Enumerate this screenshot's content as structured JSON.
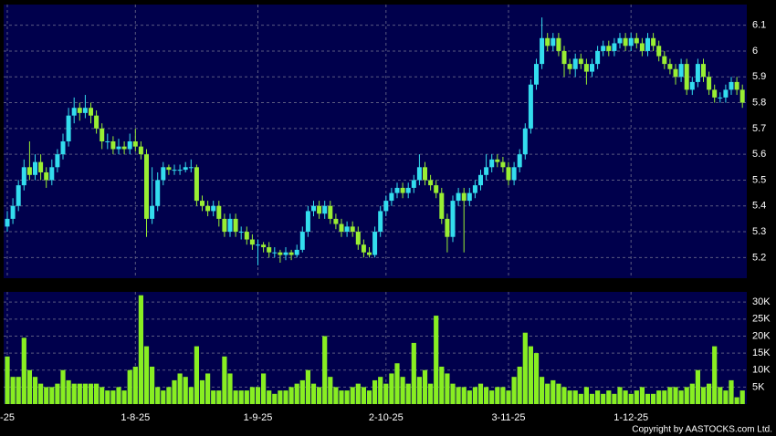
{
  "chart_data": [
    {
      "type": "candlestick",
      "up_color": "#33ddee",
      "down_color": "#99ee33",
      "grid": true,
      "ylim": [
        5.12,
        6.18
      ],
      "yticks": [
        5.2,
        5.3,
        5.4,
        5.5,
        5.6,
        5.7,
        5.8,
        5.9,
        6,
        6.1
      ],
      "open": [
        5.32,
        5.35,
        5.4,
        5.48,
        5.55,
        5.52,
        5.57,
        5.53,
        5.5,
        5.55,
        5.6,
        5.65,
        5.75,
        5.78,
        5.76,
        5.78,
        5.75,
        5.7,
        5.65,
        5.65,
        5.62,
        5.63,
        5.62,
        5.65,
        5.63,
        5.6,
        5.35,
        5.4,
        5.5,
        5.55,
        5.54,
        5.54,
        5.54,
        5.55,
        5.55,
        5.42,
        5.4,
        5.38,
        5.4,
        5.35,
        5.3,
        5.35,
        5.3,
        5.3,
        5.27,
        5.25,
        5.25,
        5.24,
        5.22,
        5.22,
        5.21,
        5.22,
        5.21,
        5.23,
        5.3,
        5.38,
        5.4,
        5.37,
        5.4,
        5.35,
        5.33,
        5.3,
        5.32,
        5.3,
        5.25,
        5.22,
        5.21,
        5.3,
        5.38,
        5.42,
        5.45,
        5.47,
        5.45,
        5.47,
        5.5,
        5.55,
        5.5,
        5.48,
        5.45,
        5.35,
        5.28,
        5.42,
        5.45,
        5.42,
        5.45,
        5.48,
        5.52,
        5.55,
        5.58,
        5.57,
        5.55,
        5.5,
        5.55,
        5.6,
        5.7,
        5.87,
        5.95,
        6.05,
        6.02,
        6.05,
        6.0,
        5.95,
        5.93,
        5.97,
        5.95,
        5.92,
        5.95,
        6.0,
        6.02,
        6.0,
        6.03,
        6.05,
        6.02,
        6.05,
        6.03,
        6.0,
        6.05,
        6.02,
        5.98,
        5.95,
        5.93,
        5.9,
        5.95,
        5.85,
        5.88,
        5.95,
        5.9,
        5.85,
        5.82,
        5.82,
        5.85,
        5.88,
        5.85
      ],
      "high": [
        5.38,
        5.43,
        5.5,
        5.58,
        5.65,
        5.6,
        5.6,
        5.55,
        5.58,
        5.62,
        5.68,
        5.78,
        5.82,
        5.8,
        5.83,
        5.8,
        5.77,
        5.72,
        5.68,
        5.67,
        5.66,
        5.65,
        5.68,
        5.7,
        5.65,
        5.62,
        5.55,
        5.53,
        5.57,
        5.56,
        5.56,
        5.56,
        5.57,
        5.58,
        5.56,
        5.44,
        5.42,
        5.42,
        5.42,
        5.37,
        5.37,
        5.37,
        5.32,
        5.32,
        5.29,
        5.27,
        5.26,
        5.26,
        5.24,
        5.23,
        5.24,
        5.23,
        5.25,
        5.32,
        5.4,
        5.42,
        5.42,
        5.42,
        5.42,
        5.37,
        5.35,
        5.34,
        5.34,
        5.32,
        5.27,
        5.24,
        5.32,
        5.4,
        5.44,
        5.47,
        5.49,
        5.49,
        5.49,
        5.52,
        5.6,
        5.57,
        5.52,
        5.5,
        5.47,
        5.37,
        5.44,
        5.47,
        5.47,
        5.47,
        5.5,
        5.54,
        5.6,
        5.6,
        5.6,
        5.59,
        5.57,
        5.57,
        5.62,
        5.72,
        5.89,
        5.97,
        6.13,
        6.07,
        6.07,
        6.07,
        6.02,
        5.97,
        5.99,
        5.99,
        5.97,
        5.97,
        6.02,
        6.04,
        6.04,
        6.05,
        6.07,
        6.07,
        6.07,
        6.07,
        6.05,
        6.07,
        6.07,
        6.04,
        6.0,
        5.97,
        5.95,
        5.97,
        5.97,
        5.9,
        5.97,
        5.97,
        5.92,
        5.87,
        5.84,
        5.87,
        5.9,
        5.9,
        5.87
      ],
      "low": [
        5.3,
        5.33,
        5.38,
        5.46,
        5.5,
        5.5,
        5.5,
        5.47,
        5.48,
        5.53,
        5.58,
        5.63,
        5.72,
        5.73,
        5.74,
        5.72,
        5.68,
        5.62,
        5.62,
        5.6,
        5.6,
        5.6,
        5.6,
        5.61,
        5.58,
        5.28,
        5.33,
        5.38,
        5.48,
        5.52,
        5.52,
        5.52,
        5.53,
        5.53,
        5.4,
        5.38,
        5.36,
        5.36,
        5.32,
        5.28,
        5.28,
        5.28,
        5.27,
        5.25,
        5.23,
        5.17,
        5.22,
        5.2,
        5.2,
        5.18,
        5.19,
        5.19,
        5.2,
        5.22,
        5.28,
        5.36,
        5.35,
        5.35,
        5.33,
        5.31,
        5.28,
        5.28,
        5.28,
        5.23,
        5.2,
        5.2,
        5.2,
        5.28,
        5.36,
        5.4,
        5.43,
        5.43,
        5.43,
        5.45,
        5.48,
        5.48,
        5.46,
        5.43,
        5.33,
        5.22,
        5.26,
        5.4,
        5.22,
        5.4,
        5.43,
        5.46,
        5.5,
        5.53,
        5.55,
        5.53,
        5.48,
        5.48,
        5.53,
        5.58,
        5.68,
        5.85,
        5.93,
        6.0,
        6.0,
        5.98,
        5.9,
        5.91,
        5.9,
        5.93,
        5.87,
        5.9,
        5.93,
        5.98,
        5.98,
        5.98,
        6.01,
        6.0,
        6.0,
        6.01,
        5.98,
        5.98,
        6.0,
        5.96,
        5.93,
        5.91,
        5.87,
        5.88,
        5.83,
        5.83,
        5.86,
        5.88,
        5.83,
        5.8,
        5.8,
        5.8,
        5.83,
        5.83,
        5.78
      ],
      "close": [
        5.35,
        5.4,
        5.48,
        5.55,
        5.52,
        5.57,
        5.53,
        5.5,
        5.55,
        5.6,
        5.65,
        5.75,
        5.78,
        5.76,
        5.78,
        5.75,
        5.7,
        5.65,
        5.65,
        5.62,
        5.63,
        5.62,
        5.65,
        5.63,
        5.6,
        5.35,
        5.4,
        5.5,
        5.55,
        5.54,
        5.54,
        5.54,
        5.55,
        5.55,
        5.42,
        5.4,
        5.38,
        5.4,
        5.35,
        5.3,
        5.35,
        5.3,
        5.3,
        5.27,
        5.25,
        5.25,
        5.24,
        5.22,
        5.22,
        5.21,
        5.22,
        5.21,
        5.23,
        5.3,
        5.38,
        5.4,
        5.37,
        5.4,
        5.35,
        5.33,
        5.3,
        5.32,
        5.3,
        5.25,
        5.22,
        5.21,
        5.3,
        5.38,
        5.42,
        5.45,
        5.47,
        5.45,
        5.47,
        5.5,
        5.55,
        5.5,
        5.48,
        5.45,
        5.35,
        5.28,
        5.42,
        5.45,
        5.42,
        5.45,
        5.48,
        5.52,
        5.55,
        5.58,
        5.57,
        5.55,
        5.5,
        5.55,
        5.6,
        5.7,
        5.87,
        5.95,
        6.05,
        6.02,
        6.05,
        6.0,
        5.95,
        5.93,
        5.97,
        5.95,
        5.92,
        5.95,
        6.0,
        6.02,
        6.0,
        6.03,
        6.05,
        6.02,
        6.05,
        6.03,
        6.0,
        6.05,
        6.02,
        5.98,
        5.95,
        5.93,
        5.9,
        5.95,
        5.85,
        5.88,
        5.95,
        5.9,
        5.85,
        5.82,
        5.82,
        5.85,
        5.88,
        5.85,
        5.8
      ]
    },
    {
      "type": "bar",
      "color": "#88ee22",
      "grid": true,
      "ylim": [
        0,
        33000
      ],
      "yticks": [
        {
          "value": 5000,
          "label": "5K"
        },
        {
          "value": 10000,
          "label": "10K"
        },
        {
          "value": 15000,
          "label": "15K"
        },
        {
          "value": 20000,
          "label": "20K"
        },
        {
          "value": 25000,
          "label": "25K"
        },
        {
          "value": 30000,
          "label": "30K"
        }
      ],
      "categories": [
        "-25",
        null,
        null,
        null,
        null,
        null,
        null,
        null,
        null,
        null,
        null,
        null,
        null,
        null,
        null,
        null,
        null,
        null,
        null,
        null,
        null,
        null,
        null,
        "1-8-25",
        null,
        null,
        null,
        null,
        null,
        null,
        null,
        null,
        null,
        null,
        null,
        null,
        null,
        null,
        null,
        null,
        null,
        null,
        null,
        null,
        null,
        "1-9-25",
        null,
        null,
        null,
        null,
        null,
        null,
        null,
        null,
        null,
        null,
        null,
        null,
        null,
        null,
        null,
        null,
        null,
        null,
        null,
        null,
        null,
        null,
        "2-10-25",
        null,
        null,
        null,
        null,
        null,
        null,
        null,
        null,
        null,
        null,
        null,
        null,
        null,
        null,
        null,
        null,
        null,
        null,
        null,
        null,
        null,
        "3-11-25",
        null,
        null,
        null,
        null,
        null,
        null,
        null,
        null,
        null,
        null,
        null,
        null,
        null,
        null,
        null,
        null,
        null,
        null,
        null,
        null,
        null,
        "1-12-25",
        null,
        null,
        null,
        null,
        null,
        null,
        null,
        null,
        null,
        null,
        null,
        null,
        null,
        null,
        null,
        null,
        null,
        null,
        null,
        null
      ],
      "values": [
        14000,
        8000,
        8000,
        19500,
        10000,
        8000,
        6000,
        5000,
        5000,
        6000,
        10000,
        7000,
        6000,
        6000,
        6000,
        6000,
        6000,
        5000,
        4000,
        4000,
        5000,
        4000,
        10000,
        11000,
        32000,
        17000,
        11000,
        5000,
        4000,
        5000,
        7000,
        9000,
        8000,
        5000,
        17000,
        7000,
        9000,
        4000,
        4000,
        14000,
        9000,
        4000,
        4000,
        4000,
        5000,
        5000,
        9000,
        4000,
        3000,
        4000,
        4000,
        5000,
        6000,
        7000,
        10000,
        6000,
        5000,
        20000,
        8000,
        5000,
        4000,
        4000,
        5000,
        6000,
        5000,
        4000,
        7000,
        8000,
        6000,
        9000,
        12000,
        8000,
        6000,
        18000,
        8000,
        10000,
        6000,
        26000,
        11000,
        9000,
        6000,
        5000,
        5000,
        4000,
        5000,
        6000,
        5000,
        4000,
        5000,
        5000,
        4000,
        8000,
        11000,
        21000,
        17000,
        15000,
        8000,
        6000,
        7000,
        6000,
        5000,
        4000,
        4000,
        3000,
        5000,
        3000,
        4000,
        3000,
        4000,
        3000,
        5000,
        4000,
        3000,
        4000,
        5000,
        3000,
        3000,
        4000,
        4000,
        5000,
        5000,
        4000,
        5000,
        6000,
        10000,
        5000,
        6000,
        17000,
        5000,
        4000,
        7000,
        2000,
        4000
      ]
    }
  ],
  "copyright": "Copyright by AASTOCKS.com Ltd."
}
